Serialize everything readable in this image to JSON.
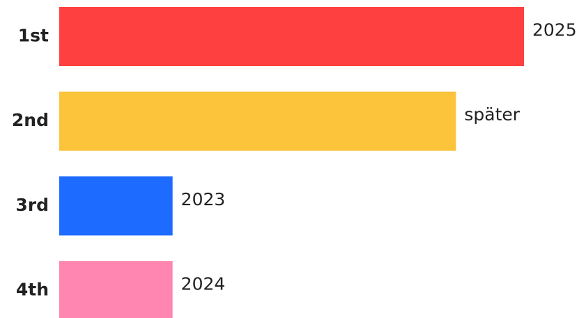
{
  "chart_data": {
    "type": "bar",
    "orientation": "horizontal",
    "categories": [
      "1st",
      "2nd",
      "3rd",
      "4th"
    ],
    "values": [
      41,
      35,
      10,
      10
    ],
    "bar_labels": [
      "2025",
      "später",
      "2023",
      "2024"
    ],
    "colors": [
      "#ff4040",
      "#fcc43a",
      "#1e6bff",
      "#ff86b0"
    ],
    "xlim": [
      0,
      41
    ]
  }
}
